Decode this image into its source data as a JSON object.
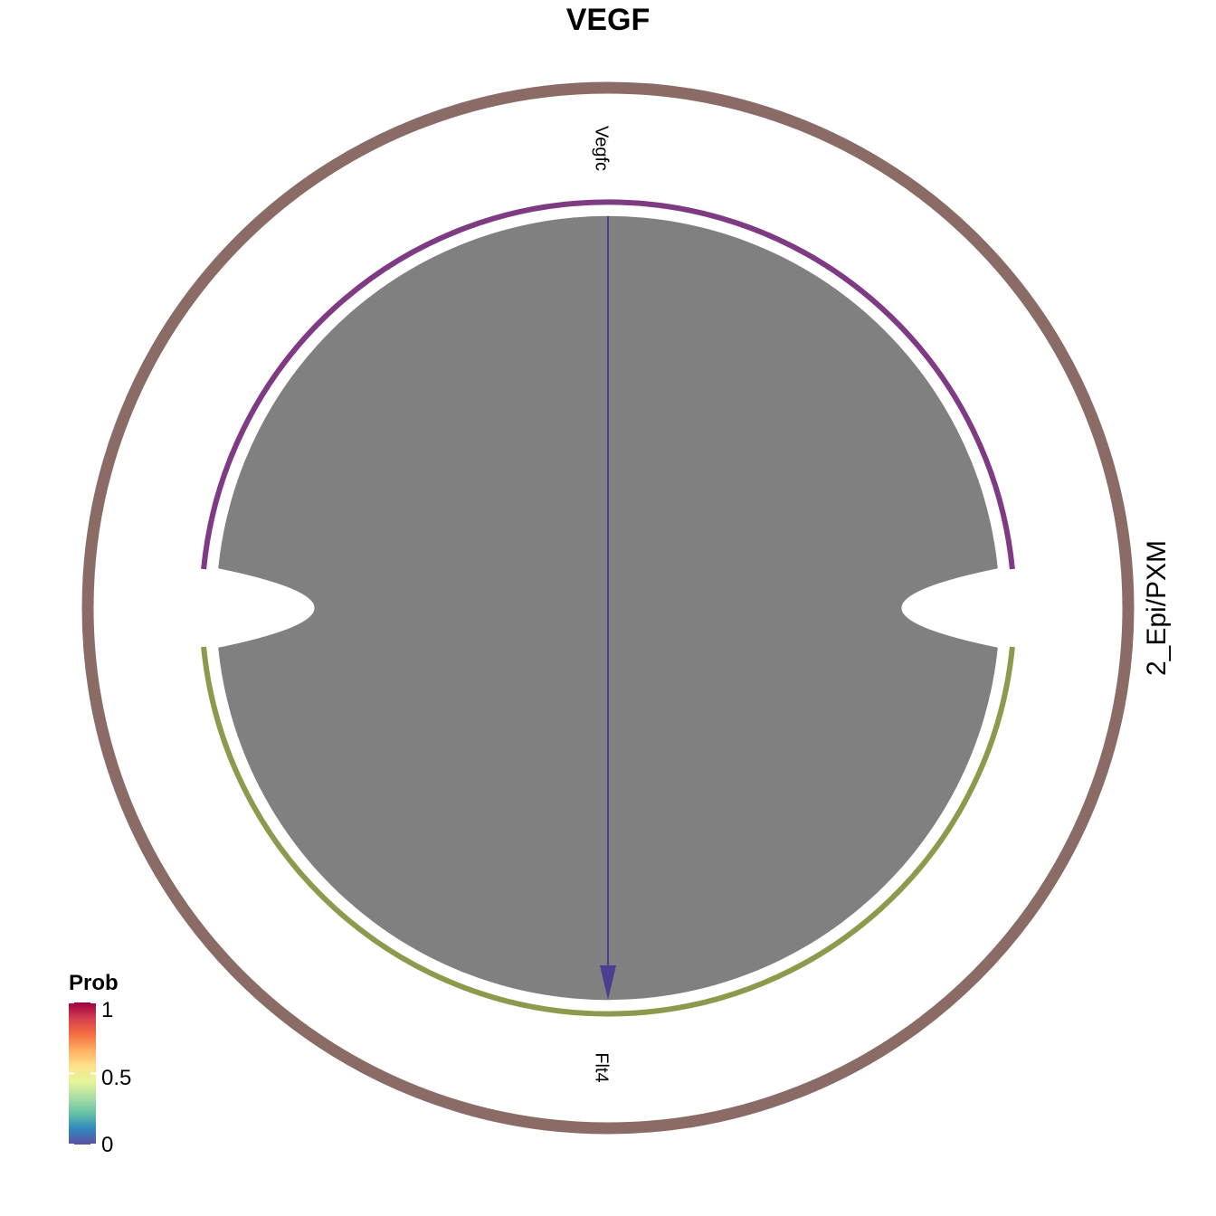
{
  "chart_data": {
    "type": "chord",
    "title": "VEGF",
    "group": {
      "name": "2_Epi/PXM",
      "color": "#8B6B66"
    },
    "sectors": [
      {
        "name": "Vegfc",
        "role": "ligand",
        "color": "#7E3A82"
      },
      {
        "name": "Flt4",
        "role": "receptor",
        "color": "#8C9A4E"
      }
    ],
    "links": [
      {
        "source": "Vegfc",
        "target": "Flt4",
        "prob": 0,
        "fill": "#808080",
        "arrow_color": "#4B3D8F"
      }
    ],
    "legend": {
      "title": "Prob",
      "ticks": [
        "0",
        "0.5",
        "1"
      ],
      "range": [
        0,
        1
      ],
      "colors": [
        "#5E4FA2",
        "#3288BD",
        "#66C2A5",
        "#ABDDA4",
        "#E6F598",
        "#FEE08B",
        "#FDAE61",
        "#F46D43",
        "#D53E4F",
        "#9E0142"
      ],
      "placement": "bottom-left"
    }
  }
}
